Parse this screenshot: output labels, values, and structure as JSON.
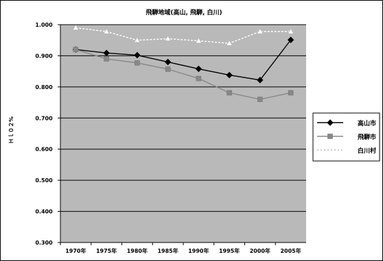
{
  "chart_data": {
    "type": "line",
    "title": "飛騨地域(高山, 飛騨, 白川)",
    "ylabel": "Ｈｌ０２%",
    "xlabel": "",
    "categories": [
      "1970年",
      "1975年",
      "1980年",
      "1985年",
      "1990年",
      "1995年",
      "2000年",
      "2005年"
    ],
    "ylim": [
      0.3,
      1.0
    ],
    "yticks": [
      "0.300",
      "0.400",
      "0.500",
      "0.600",
      "0.700",
      "0.800",
      "0.900",
      "1.000"
    ],
    "grid": true,
    "legend_position": "right",
    "series": [
      {
        "name": "高山市",
        "values": [
          0.92,
          0.909,
          0.902,
          0.88,
          0.858,
          0.838,
          0.822,
          0.951
        ],
        "color": "#000000",
        "marker": "diamond",
        "dash": "solid"
      },
      {
        "name": "飛騨市",
        "values": [
          0.92,
          0.89,
          0.877,
          0.857,
          0.827,
          0.781,
          0.76,
          0.781
        ],
        "color": "#888888",
        "marker": "square",
        "dash": "solid"
      },
      {
        "name": "白川村",
        "values": [
          0.99,
          0.978,
          0.95,
          0.955,
          0.948,
          0.94,
          0.978,
          0.978
        ],
        "color": "#ffffff",
        "marker": "triangle",
        "dash": "dashed"
      }
    ]
  }
}
